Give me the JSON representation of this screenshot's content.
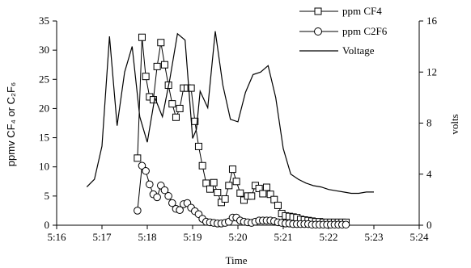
{
  "chart_data": {
    "type": "line",
    "xlabel": "Time",
    "ylabel_left": "ppmv CF₄ or C₂F₆",
    "ylabel_right": "volts",
    "x_ticks": [
      "5:16",
      "5:17",
      "5:18",
      "5:19",
      "5:20",
      "5:21",
      "5:22",
      "5:23",
      "5:24"
    ],
    "y_left_ticks": [
      "0",
      "5",
      "10",
      "15",
      "20",
      "25",
      "30",
      "35"
    ],
    "y_right_ticks": [
      "0",
      "4",
      "8",
      "12",
      "16"
    ],
    "xlim": [
      "5:16",
      "5:24"
    ],
    "ylim_left": [
      0,
      35
    ],
    "ylim_right": [
      0,
      16
    ],
    "legend_position": "top-right",
    "series": [
      {
        "name": "ppm CF4",
        "axis": "left",
        "marker": "square",
        "x": [
          "5:17:47",
          "5:17:53",
          "5:17:58",
          "5:18:03",
          "5:18:08",
          "5:18:13",
          "5:18:18",
          "5:18:23",
          "5:18:28",
          "5:18:33",
          "5:18:38",
          "5:18:43",
          "5:18:48",
          "5:18:53",
          "5:18:58",
          "5:19:03",
          "5:19:08",
          "5:19:13",
          "5:19:18",
          "5:19:23",
          "5:19:28",
          "5:19:33",
          "5:19:38",
          "5:19:43",
          "5:19:48",
          "5:19:53",
          "5:19:58",
          "5:20:03",
          "5:20:08",
          "5:20:13",
          "5:20:18",
          "5:20:23",
          "5:20:28",
          "5:20:33",
          "5:20:38",
          "5:20:43",
          "5:20:48",
          "5:20:53",
          "5:20:58",
          "5:21:03",
          "5:21:08",
          "5:21:13",
          "5:21:18",
          "5:21:23",
          "5:21:28",
          "5:21:33",
          "5:21:38",
          "5:21:43",
          "5:21:48",
          "5:21:53",
          "5:21:58",
          "5:22:03",
          "5:22:08",
          "5:22:13",
          "5:22:18",
          "5:22:23"
        ],
        "values": [
          11.5,
          32.2,
          25.5,
          22.0,
          21.5,
          27.2,
          31.3,
          27.5,
          24.0,
          20.8,
          18.5,
          20.0,
          23.5,
          23.5,
          23.5,
          17.8,
          13.5,
          10.2,
          7.2,
          6.2,
          7.3,
          5.6,
          3.9,
          4.5,
          6.8,
          9.6,
          7.5,
          5.5,
          4.3,
          5.0,
          5.0,
          6.8,
          6.3,
          5.4,
          6.5,
          5.3,
          4.4,
          3.4,
          2.0,
          1.6,
          1.5,
          1.4,
          1.3,
          1.0,
          0.9,
          0.8,
          0.7,
          0.6,
          0.6,
          0.5,
          0.5,
          0.5,
          0.5,
          0.5,
          0.5,
          0.5
        ]
      },
      {
        "name": "ppm C2F6",
        "axis": "left",
        "marker": "circle",
        "x": [
          "5:17:47",
          "5:17:53",
          "5:17:58",
          "5:18:03",
          "5:18:08",
          "5:18:13",
          "5:18:18",
          "5:18:23",
          "5:18:28",
          "5:18:33",
          "5:18:38",
          "5:18:43",
          "5:18:48",
          "5:18:53",
          "5:18:58",
          "5:19:03",
          "5:19:08",
          "5:19:13",
          "5:19:18",
          "5:19:23",
          "5:19:28",
          "5:19:33",
          "5:19:38",
          "5:19:43",
          "5:19:48",
          "5:19:53",
          "5:19:58",
          "5:20:03",
          "5:20:08",
          "5:20:13",
          "5:20:18",
          "5:20:23",
          "5:20:28",
          "5:20:33",
          "5:20:38",
          "5:20:43",
          "5:20:48",
          "5:20:53",
          "5:20:58",
          "5:21:03",
          "5:21:08",
          "5:21:13",
          "5:21:18",
          "5:21:23",
          "5:21:28",
          "5:21:33",
          "5:21:38",
          "5:21:43",
          "5:21:48",
          "5:21:53",
          "5:21:58",
          "5:22:03",
          "5:22:08",
          "5:22:13",
          "5:22:18",
          "5:22:23"
        ],
        "values": [
          2.5,
          10.2,
          9.3,
          7.0,
          5.3,
          4.8,
          6.8,
          6.0,
          5.0,
          3.8,
          2.8,
          2.6,
          3.6,
          3.8,
          3.0,
          2.4,
          1.9,
          1.1,
          0.6,
          0.5,
          0.4,
          0.3,
          0.3,
          0.4,
          0.6,
          1.3,
          1.3,
          0.8,
          0.6,
          0.5,
          0.4,
          0.6,
          0.8,
          0.8,
          0.8,
          0.8,
          0.7,
          0.5,
          0.4,
          0.3,
          0.3,
          0.2,
          0.2,
          0.2,
          0.2,
          0.2,
          0.1,
          0.1,
          0.1,
          0.1,
          0.1,
          0.1,
          0.1,
          0.1,
          0.1,
          0.1
        ]
      },
      {
        "name": "Voltage",
        "axis": "right",
        "marker": "none",
        "x": [
          "5:16:40",
          "5:16:50",
          "5:17:00",
          "5:17:10",
          "5:17:20",
          "5:17:30",
          "5:17:40",
          "5:17:50",
          "5:18:00",
          "5:18:10",
          "5:18:20",
          "5:18:30",
          "5:18:40",
          "5:18:50",
          "5:19:00",
          "5:19:05",
          "5:19:10",
          "5:19:20",
          "5:19:30",
          "5:19:40",
          "5:19:50",
          "5:20:00",
          "5:20:10",
          "5:20:20",
          "5:20:30",
          "5:20:40",
          "5:20:50",
          "5:21:00",
          "5:21:10",
          "5:21:20",
          "5:21:30",
          "5:21:40",
          "5:21:50",
          "5:22:00",
          "5:22:10",
          "5:22:20",
          "5:22:30",
          "5:22:40",
          "5:22:50",
          "5:23:00"
        ],
        "values": [
          3.0,
          3.6,
          6.2,
          14.8,
          7.8,
          12.0,
          14.0,
          8.5,
          6.5,
          10.0,
          8.5,
          11.5,
          15.0,
          14.5,
          6.8,
          7.5,
          10.5,
          9.2,
          15.2,
          11.0,
          8.3,
          8.1,
          10.4,
          11.8,
          12.0,
          12.5,
          10.0,
          6.0,
          4.0,
          3.6,
          3.3,
          3.1,
          3.0,
          2.8,
          2.7,
          2.6,
          2.5,
          2.5,
          2.6,
          2.6
        ]
      }
    ]
  }
}
